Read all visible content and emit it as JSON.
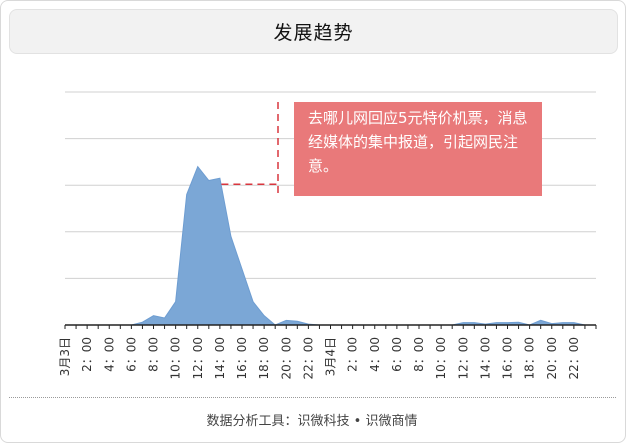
{
  "title": "发展趋势",
  "footer": "数据分析工具：识微科技 • 识微商情",
  "annotation": "去哪儿网回应5元特价机票，消息经媒体的集中报道，引起网民注意。",
  "colors": {
    "area": "#7ba7d6",
    "area_edge": "#6e9dd1",
    "callout": "#e9797a",
    "marker": "#d9363e",
    "grid": "#d0d0d0",
    "axis": "#222222"
  },
  "chart_data": {
    "type": "area",
    "x_unit": "hour",
    "x": [
      0,
      1,
      2,
      3,
      4,
      5,
      6,
      7,
      8,
      9,
      10,
      11,
      12,
      13,
      14,
      15,
      16,
      17,
      18,
      19,
      20,
      21,
      22,
      23,
      24,
      25,
      26,
      27,
      28,
      29,
      30,
      31,
      32,
      33,
      34,
      35,
      36,
      37,
      38,
      39,
      40,
      41,
      42,
      43,
      44,
      45,
      46,
      47
    ],
    "values": [
      0,
      0,
      0,
      0,
      0,
      0,
      0,
      0.6,
      2,
      1.5,
      5,
      28,
      34,
      31,
      31.5,
      19,
      12,
      5,
      2,
      0,
      1,
      0.8,
      0.2,
      0,
      0,
      0,
      0,
      0,
      0,
      0,
      0,
      0,
      0,
      0,
      0,
      0,
      0.5,
      0.5,
      0.2,
      0.5,
      0.5,
      0.6,
      0,
      1,
      0.3,
      0.5,
      0.5,
      0
    ],
    "tick_labels": [
      "3月3日",
      "2：00",
      "4：00",
      "6：00",
      "8：00",
      "10：00",
      "12：00",
      "14：00",
      "16：00",
      "18：00",
      "20：00",
      "22：00",
      "3月4日",
      "2：00",
      "4：00",
      "6：00",
      "8：00",
      "10：00",
      "12：00",
      "14：00",
      "16：00",
      "18：00",
      "20：00",
      "22：00"
    ],
    "ylim": [
      0,
      50
    ],
    "y_gridlines": [
      10,
      20,
      30,
      40,
      50
    ],
    "grid": true,
    "legend": false,
    "event_x": 14.5
  }
}
